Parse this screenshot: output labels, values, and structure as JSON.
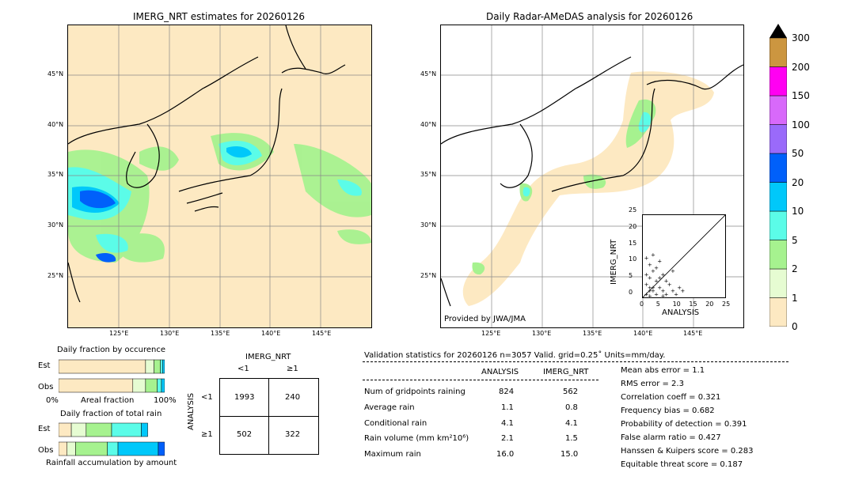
{
  "left_map": {
    "title": "IMERG_NRT estimates for 20260126",
    "lat_labels": [
      "45°N",
      "40°N",
      "35°N",
      "30°N",
      "25°N"
    ],
    "lon_labels": [
      "125°E",
      "130°E",
      "135°E",
      "140°E",
      "145°E"
    ]
  },
  "right_map": {
    "title": "Daily Radar-AMeDAS analysis for 20260126",
    "lat_labels": [
      "45°N",
      "40°N",
      "35°N",
      "30°N",
      "25°N"
    ],
    "lon_labels": [
      "125°E",
      "130°E",
      "135°E",
      "140°E",
      "145°E"
    ],
    "credit": "Provided by JWA/JMA"
  },
  "colorbar": {
    "ticks": [
      "0",
      "1",
      "2",
      "5",
      "10",
      "20",
      "50",
      "100",
      "150",
      "200",
      "300"
    ],
    "colors": [
      "#fde9c2",
      "#e6fcd2",
      "#a6f28f",
      "#5bfce8",
      "#00c8fa",
      "#0060fa",
      "#9a6afa",
      "#d869fa",
      "#ff00f2",
      "#cc9640"
    ]
  },
  "chart_data": [
    {
      "type": "scatter",
      "title": "",
      "xlabel": "ANALYSIS",
      "ylabel": "IMERG_NRT",
      "xlim": [
        0,
        25
      ],
      "ylim": [
        0,
        25
      ],
      "x_ticks": [
        "0",
        "5",
        "10",
        "15",
        "20",
        "25"
      ],
      "y_ticks": [
        "0",
        "5",
        "10",
        "15",
        "20",
        "25"
      ]
    },
    {
      "type": "bar",
      "title": "Daily fraction by occurence",
      "categories": [
        "Est",
        "Obs"
      ],
      "xlabel": "Areal fraction",
      "x_left": "0%",
      "x_right": "100%",
      "series": [
        {
          "color": "#fde9c2",
          "values": [
            0.82,
            0.7
          ]
        },
        {
          "color": "#e6fcd2",
          "values": [
            0.08,
            0.12
          ]
        },
        {
          "color": "#a6f28f",
          "values": [
            0.06,
            0.11
          ]
        },
        {
          "color": "#5bfce8",
          "values": [
            0.02,
            0.04
          ]
        },
        {
          "color": "#00c8fa",
          "values": [
            0.02,
            0.03
          ]
        }
      ]
    },
    {
      "type": "bar",
      "title": "Daily fraction of total rain",
      "categories": [
        "Est",
        "Obs"
      ],
      "xlabel": "Rainfall accumulation by amount",
      "series": [
        {
          "color": "#fde9c2",
          "values": [
            0.12,
            0.08
          ]
        },
        {
          "color": "#e6fcd2",
          "values": [
            0.14,
            0.08
          ]
        },
        {
          "color": "#a6f28f",
          "values": [
            0.24,
            0.3
          ]
        },
        {
          "color": "#5bfce8",
          "values": [
            0.28,
            0.1
          ]
        },
        {
          "color": "#00c8fa",
          "values": [
            0.06,
            0.38
          ]
        },
        {
          "color": "#0060fa",
          "values": [
            0.0,
            0.06
          ]
        }
      ]
    }
  ],
  "contingency": {
    "col_title": "IMERG_NRT",
    "row_title": "ANALYSIS",
    "col_labels": [
      "<1",
      "≥1"
    ],
    "row_labels": [
      "<1",
      "≥1"
    ],
    "cells": [
      [
        "1993",
        "240"
      ],
      [
        "502",
        "322"
      ]
    ]
  },
  "validation": {
    "header": "Validation statistics for 20260126  n=3057 Valid. grid=0.25˚ Units=mm/day.",
    "col_analysis": "ANALYSIS",
    "col_imerg": "IMERG_NRT",
    "rows": [
      {
        "label": "Num of gridpoints raining",
        "a": "824",
        "b": "562"
      },
      {
        "label": "Average rain",
        "a": "1.1",
        "b": "0.8"
      },
      {
        "label": "Conditional rain",
        "a": "4.1",
        "b": "4.1"
      },
      {
        "label": "Rain volume (mm km²10⁶)",
        "a": "2.1",
        "b": "1.5"
      },
      {
        "label": "Maximum rain",
        "a": "16.0",
        "b": "15.0"
      }
    ],
    "scores": [
      "Mean abs error =    1.1",
      "RMS error =    2.3",
      "Correlation coeff =  0.321",
      "Frequency bias =  0.682",
      "Probability of detection =  0.391",
      "False alarm ratio =  0.427",
      "Hanssen & Kuipers score =  0.283",
      "Equitable threat score =  0.187"
    ]
  }
}
